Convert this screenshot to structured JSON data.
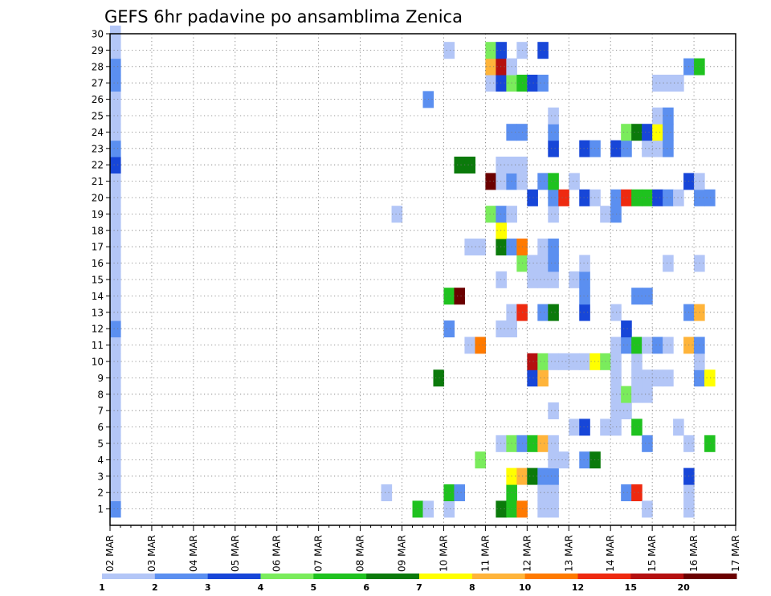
{
  "chart_data": {
    "type": "heatmap",
    "title": "GEFS 6hr padavine po ansamblima Zenica",
    "xlabel": "",
    "ylabel": "",
    "x_tick_labels": [
      "02 MAR",
      "03 MAR",
      "04 MAR",
      "05 MAR",
      "06 MAR",
      "07 MAR",
      "08 MAR",
      "09 MAR",
      "10 MAR",
      "11 MAR",
      "12 MAR",
      "13 MAR",
      "14 MAR",
      "15 MAR",
      "16 MAR",
      "17 MAR"
    ],
    "y_tick_labels": [
      "1",
      "2",
      "3",
      "4",
      "5",
      "6",
      "7",
      "8",
      "9",
      "10",
      "11",
      "12",
      "13",
      "14",
      "15",
      "16",
      "17",
      "18",
      "19",
      "20",
      "21",
      "22",
      "23",
      "24",
      "25",
      "26",
      "27",
      "28",
      "29",
      "30"
    ],
    "x_range": [
      "02 MAR",
      "17 MAR"
    ],
    "y_range": [
      0,
      30
    ],
    "steps_per_day": 4,
    "grid": true,
    "legend_placement": "bottom",
    "legend": {
      "labels": [
        "1",
        "2",
        "3",
        "4",
        "5",
        "6",
        "7",
        "8",
        "10",
        "12",
        "15",
        "20"
      ],
      "colors": [
        "#b3c6f7",
        "#5b8ff0",
        "#1746d8",
        "#7aec5c",
        "#1fc21f",
        "#0b7a0b",
        "#ffff00",
        "#ffb43a",
        "#ff7a00",
        "#ee2a10",
        "#b51010",
        "#6b0000"
      ]
    },
    "cells": [
      {
        "step": 0,
        "member": 1,
        "cat": 2
      },
      {
        "step": 0,
        "member": 2,
        "cat": 1
      },
      {
        "step": 0,
        "member": 3,
        "cat": 1
      },
      {
        "step": 0,
        "member": 4,
        "cat": 1
      },
      {
        "step": 0,
        "member": 5,
        "cat": 1
      },
      {
        "step": 0,
        "member": 6,
        "cat": 1
      },
      {
        "step": 0,
        "member": 7,
        "cat": 1
      },
      {
        "step": 0,
        "member": 8,
        "cat": 1
      },
      {
        "step": 0,
        "member": 9,
        "cat": 1
      },
      {
        "step": 0,
        "member": 10,
        "cat": 1
      },
      {
        "step": 0,
        "member": 11,
        "cat": 1
      },
      {
        "step": 0,
        "member": 12,
        "cat": 2
      },
      {
        "step": 0,
        "member": 13,
        "cat": 1
      },
      {
        "step": 0,
        "member": 14,
        "cat": 1
      },
      {
        "step": 0,
        "member": 15,
        "cat": 1
      },
      {
        "step": 0,
        "member": 16,
        "cat": 1
      },
      {
        "step": 0,
        "member": 17,
        "cat": 1
      },
      {
        "step": 0,
        "member": 18,
        "cat": 1
      },
      {
        "step": 0,
        "member": 19,
        "cat": 1
      },
      {
        "step": 0,
        "member": 20,
        "cat": 1
      },
      {
        "step": 0,
        "member": 21,
        "cat": 1
      },
      {
        "step": 0,
        "member": 22,
        "cat": 3
      },
      {
        "step": 0,
        "member": 23,
        "cat": 2
      },
      {
        "step": 0,
        "member": 24,
        "cat": 1
      },
      {
        "step": 0,
        "member": 25,
        "cat": 1
      },
      {
        "step": 0,
        "member": 26,
        "cat": 1
      },
      {
        "step": 0,
        "member": 27,
        "cat": 2
      },
      {
        "step": 0,
        "member": 28,
        "cat": 2
      },
      {
        "step": 0,
        "member": 29,
        "cat": 1
      },
      {
        "step": 0,
        "member": 30,
        "cat": 1
      },
      {
        "step": 26,
        "member": 2,
        "cat": 1
      },
      {
        "step": 27,
        "member": 19,
        "cat": 1
      },
      {
        "step": 29,
        "member": 1,
        "cat": 5
      },
      {
        "step": 30,
        "member": 1,
        "cat": 1
      },
      {
        "step": 30,
        "member": 26,
        "cat": 2
      },
      {
        "step": 31,
        "member": 9,
        "cat": 6
      },
      {
        "step": 32,
        "member": 1,
        "cat": 1
      },
      {
        "step": 32,
        "member": 2,
        "cat": 5
      },
      {
        "step": 32,
        "member": 12,
        "cat": 2
      },
      {
        "step": 32,
        "member": 14,
        "cat": 5
      },
      {
        "step": 32,
        "member": 29,
        "cat": 1
      },
      {
        "step": 33,
        "member": 2,
        "cat": 2
      },
      {
        "step": 33,
        "member": 14,
        "cat": 12
      },
      {
        "step": 33,
        "member": 22,
        "cat": 6
      },
      {
        "step": 34,
        "member": 11,
        "cat": 1
      },
      {
        "step": 34,
        "member": 17,
        "cat": 1
      },
      {
        "step": 34,
        "member": 22,
        "cat": 6
      },
      {
        "step": 35,
        "member": 4,
        "cat": 4
      },
      {
        "step": 35,
        "member": 11,
        "cat": 9
      },
      {
        "step": 35,
        "member": 17,
        "cat": 1
      },
      {
        "step": 36,
        "member": 19,
        "cat": 4
      },
      {
        "step": 36,
        "member": 21,
        "cat": 12
      },
      {
        "step": 36,
        "member": 27,
        "cat": 1
      },
      {
        "step": 36,
        "member": 28,
        "cat": 8
      },
      {
        "step": 36,
        "member": 29,
        "cat": 4
      },
      {
        "step": 37,
        "member": 1,
        "cat": 6
      },
      {
        "step": 37,
        "member": 5,
        "cat": 1
      },
      {
        "step": 37,
        "member": 12,
        "cat": 1
      },
      {
        "step": 37,
        "member": 15,
        "cat": 1
      },
      {
        "step": 37,
        "member": 17,
        "cat": 6
      },
      {
        "step": 37,
        "member": 18,
        "cat": 7
      },
      {
        "step": 37,
        "member": 19,
        "cat": 2
      },
      {
        "step": 37,
        "member": 21,
        "cat": 1
      },
      {
        "step": 37,
        "member": 22,
        "cat": 1
      },
      {
        "step": 37,
        "member": 27,
        "cat": 3
      },
      {
        "step": 37,
        "member": 28,
        "cat": 11
      },
      {
        "step": 37,
        "member": 29,
        "cat": 3
      },
      {
        "step": 38,
        "member": 1,
        "cat": 5
      },
      {
        "step": 38,
        "member": 2,
        "cat": 5
      },
      {
        "step": 38,
        "member": 3,
        "cat": 7
      },
      {
        "step": 38,
        "member": 5,
        "cat": 4
      },
      {
        "step": 38,
        "member": 12,
        "cat": 1
      },
      {
        "step": 38,
        "member": 13,
        "cat": 1
      },
      {
        "step": 38,
        "member": 17,
        "cat": 2
      },
      {
        "step": 38,
        "member": 19,
        "cat": 1
      },
      {
        "step": 38,
        "member": 21,
        "cat": 2
      },
      {
        "step": 38,
        "member": 22,
        "cat": 1
      },
      {
        "step": 38,
        "member": 24,
        "cat": 2
      },
      {
        "step": 38,
        "member": 27,
        "cat": 4
      },
      {
        "step": 38,
        "member": 28,
        "cat": 1
      },
      {
        "step": 39,
        "member": 1,
        "cat": 9
      },
      {
        "step": 39,
        "member": 3,
        "cat": 8
      },
      {
        "step": 39,
        "member": 5,
        "cat": 2
      },
      {
        "step": 39,
        "member": 13,
        "cat": 10
      },
      {
        "step": 39,
        "member": 16,
        "cat": 4
      },
      {
        "step": 39,
        "member": 17,
        "cat": 9
      },
      {
        "step": 39,
        "member": 21,
        "cat": 1
      },
      {
        "step": 39,
        "member": 22,
        "cat": 1
      },
      {
        "step": 39,
        "member": 24,
        "cat": 2
      },
      {
        "step": 39,
        "member": 27,
        "cat": 5
      },
      {
        "step": 39,
        "member": 29,
        "cat": 1
      },
      {
        "step": 40,
        "member": 3,
        "cat": 6
      },
      {
        "step": 40,
        "member": 5,
        "cat": 5
      },
      {
        "step": 40,
        "member": 9,
        "cat": 3
      },
      {
        "step": 40,
        "member": 10,
        "cat": 11
      },
      {
        "step": 40,
        "member": 15,
        "cat": 1
      },
      {
        "step": 40,
        "member": 16,
        "cat": 1
      },
      {
        "step": 40,
        "member": 20,
        "cat": 3
      },
      {
        "step": 40,
        "member": 27,
        "cat": 3
      },
      {
        "step": 41,
        "member": 1,
        "cat": 1
      },
      {
        "step": 41,
        "member": 2,
        "cat": 1
      },
      {
        "step": 41,
        "member": 3,
        "cat": 2
      },
      {
        "step": 41,
        "member": 5,
        "cat": 8
      },
      {
        "step": 41,
        "member": 9,
        "cat": 8
      },
      {
        "step": 41,
        "member": 10,
        "cat": 4
      },
      {
        "step": 41,
        "member": 13,
        "cat": 2
      },
      {
        "step": 41,
        "member": 15,
        "cat": 1
      },
      {
        "step": 41,
        "member": 16,
        "cat": 1
      },
      {
        "step": 41,
        "member": 17,
        "cat": 1
      },
      {
        "step": 41,
        "member": 21,
        "cat": 2
      },
      {
        "step": 41,
        "member": 27,
        "cat": 2
      },
      {
        "step": 41,
        "member": 29,
        "cat": 3
      },
      {
        "step": 42,
        "member": 1,
        "cat": 1
      },
      {
        "step": 42,
        "member": 2,
        "cat": 1
      },
      {
        "step": 42,
        "member": 3,
        "cat": 2
      },
      {
        "step": 42,
        "member": 4,
        "cat": 1
      },
      {
        "step": 42,
        "member": 5,
        "cat": 1
      },
      {
        "step": 42,
        "member": 7,
        "cat": 1
      },
      {
        "step": 42,
        "member": 10,
        "cat": 1
      },
      {
        "step": 42,
        "member": 13,
        "cat": 6
      },
      {
        "step": 42,
        "member": 15,
        "cat": 1
      },
      {
        "step": 42,
        "member": 16,
        "cat": 2
      },
      {
        "step": 42,
        "member": 17,
        "cat": 2
      },
      {
        "step": 42,
        "member": 19,
        "cat": 1
      },
      {
        "step": 42,
        "member": 20,
        "cat": 2
      },
      {
        "step": 42,
        "member": 21,
        "cat": 5
      },
      {
        "step": 42,
        "member": 23,
        "cat": 3
      },
      {
        "step": 42,
        "member": 24,
        "cat": 2
      },
      {
        "step": 42,
        "member": 25,
        "cat": 1
      },
      {
        "step": 43,
        "member": 4,
        "cat": 1
      },
      {
        "step": 43,
        "member": 10,
        "cat": 1
      },
      {
        "step": 43,
        "member": 20,
        "cat": 10
      },
      {
        "step": 44,
        "member": 6,
        "cat": 1
      },
      {
        "step": 44,
        "member": 10,
        "cat": 1
      },
      {
        "step": 44,
        "member": 15,
        "cat": 1
      },
      {
        "step": 44,
        "member": 21,
        "cat": 1
      },
      {
        "step": 45,
        "member": 4,
        "cat": 2
      },
      {
        "step": 45,
        "member": 6,
        "cat": 3
      },
      {
        "step": 45,
        "member": 10,
        "cat": 1
      },
      {
        "step": 45,
        "member": 13,
        "cat": 3
      },
      {
        "step": 45,
        "member": 14,
        "cat": 2
      },
      {
        "step": 45,
        "member": 15,
        "cat": 2
      },
      {
        "step": 45,
        "member": 16,
        "cat": 1
      },
      {
        "step": 45,
        "member": 20,
        "cat": 3
      },
      {
        "step": 45,
        "member": 23,
        "cat": 3
      },
      {
        "step": 46,
        "member": 4,
        "cat": 6
      },
      {
        "step": 46,
        "member": 10,
        "cat": 7
      },
      {
        "step": 46,
        "member": 20,
        "cat": 1
      },
      {
        "step": 46,
        "member": 23,
        "cat": 2
      },
      {
        "step": 47,
        "member": 6,
        "cat": 1
      },
      {
        "step": 47,
        "member": 10,
        "cat": 4
      },
      {
        "step": 47,
        "member": 19,
        "cat": 1
      },
      {
        "step": 48,
        "member": 6,
        "cat": 1
      },
      {
        "step": 48,
        "member": 7,
        "cat": 1
      },
      {
        "step": 48,
        "member": 8,
        "cat": 1
      },
      {
        "step": 48,
        "member": 9,
        "cat": 1
      },
      {
        "step": 48,
        "member": 10,
        "cat": 1
      },
      {
        "step": 48,
        "member": 11,
        "cat": 1
      },
      {
        "step": 48,
        "member": 13,
        "cat": 1
      },
      {
        "step": 48,
        "member": 19,
        "cat": 2
      },
      {
        "step": 48,
        "member": 20,
        "cat": 2
      },
      {
        "step": 48,
        "member": 23,
        "cat": 3
      },
      {
        "step": 49,
        "member": 2,
        "cat": 2
      },
      {
        "step": 49,
        "member": 7,
        "cat": 1
      },
      {
        "step": 49,
        "member": 8,
        "cat": 4
      },
      {
        "step": 49,
        "member": 11,
        "cat": 2
      },
      {
        "step": 49,
        "member": 12,
        "cat": 3
      },
      {
        "step": 49,
        "member": 20,
        "cat": 10
      },
      {
        "step": 49,
        "member": 23,
        "cat": 2
      },
      {
        "step": 49,
        "member": 24,
        "cat": 4
      },
      {
        "step": 50,
        "member": 2,
        "cat": 10
      },
      {
        "step": 50,
        "member": 6,
        "cat": 5
      },
      {
        "step": 50,
        "member": 8,
        "cat": 1
      },
      {
        "step": 50,
        "member": 9,
        "cat": 1
      },
      {
        "step": 50,
        "member": 10,
        "cat": 1
      },
      {
        "step": 50,
        "member": 11,
        "cat": 5
      },
      {
        "step": 50,
        "member": 14,
        "cat": 2
      },
      {
        "step": 50,
        "member": 20,
        "cat": 5
      },
      {
        "step": 50,
        "member": 24,
        "cat": 6
      },
      {
        "step": 51,
        "member": 1,
        "cat": 1
      },
      {
        "step": 51,
        "member": 5,
        "cat": 2
      },
      {
        "step": 51,
        "member": 8,
        "cat": 1
      },
      {
        "step": 51,
        "member": 9,
        "cat": 1
      },
      {
        "step": 51,
        "member": 11,
        "cat": 1
      },
      {
        "step": 51,
        "member": 14,
        "cat": 2
      },
      {
        "step": 51,
        "member": 20,
        "cat": 5
      },
      {
        "step": 51,
        "member": 23,
        "cat": 1
      },
      {
        "step": 51,
        "member": 24,
        "cat": 3
      },
      {
        "step": 52,
        "member": 9,
        "cat": 1
      },
      {
        "step": 52,
        "member": 11,
        "cat": 2
      },
      {
        "step": 52,
        "member": 20,
        "cat": 3
      },
      {
        "step": 52,
        "member": 23,
        "cat": 1
      },
      {
        "step": 52,
        "member": 24,
        "cat": 7
      },
      {
        "step": 52,
        "member": 25,
        "cat": 1
      },
      {
        "step": 52,
        "member": 27,
        "cat": 1
      },
      {
        "step": 53,
        "member": 9,
        "cat": 1
      },
      {
        "step": 53,
        "member": 11,
        "cat": 1
      },
      {
        "step": 53,
        "member": 16,
        "cat": 1
      },
      {
        "step": 53,
        "member": 20,
        "cat": 2
      },
      {
        "step": 53,
        "member": 23,
        "cat": 2
      },
      {
        "step": 53,
        "member": 24,
        "cat": 2
      },
      {
        "step": 53,
        "member": 25,
        "cat": 2
      },
      {
        "step": 53,
        "member": 27,
        "cat": 1
      },
      {
        "step": 54,
        "member": 6,
        "cat": 1
      },
      {
        "step": 54,
        "member": 20,
        "cat": 1
      },
      {
        "step": 54,
        "member": 27,
        "cat": 1
      },
      {
        "step": 55,
        "member": 1,
        "cat": 1
      },
      {
        "step": 55,
        "member": 2,
        "cat": 1
      },
      {
        "step": 55,
        "member": 3,
        "cat": 3
      },
      {
        "step": 55,
        "member": 5,
        "cat": 1
      },
      {
        "step": 55,
        "member": 11,
        "cat": 8
      },
      {
        "step": 55,
        "member": 13,
        "cat": 2
      },
      {
        "step": 55,
        "member": 21,
        "cat": 3
      },
      {
        "step": 55,
        "member": 28,
        "cat": 2
      },
      {
        "step": 56,
        "member": 9,
        "cat": 2
      },
      {
        "step": 56,
        "member": 10,
        "cat": 1
      },
      {
        "step": 56,
        "member": 11,
        "cat": 2
      },
      {
        "step": 56,
        "member": 13,
        "cat": 8
      },
      {
        "step": 56,
        "member": 16,
        "cat": 1
      },
      {
        "step": 56,
        "member": 20,
        "cat": 2
      },
      {
        "step": 56,
        "member": 21,
        "cat": 1
      },
      {
        "step": 56,
        "member": 28,
        "cat": 5
      },
      {
        "step": 57,
        "member": 5,
        "cat": 5
      },
      {
        "step": 57,
        "member": 9,
        "cat": 7
      },
      {
        "step": 57,
        "member": 20,
        "cat": 2
      }
    ]
  }
}
